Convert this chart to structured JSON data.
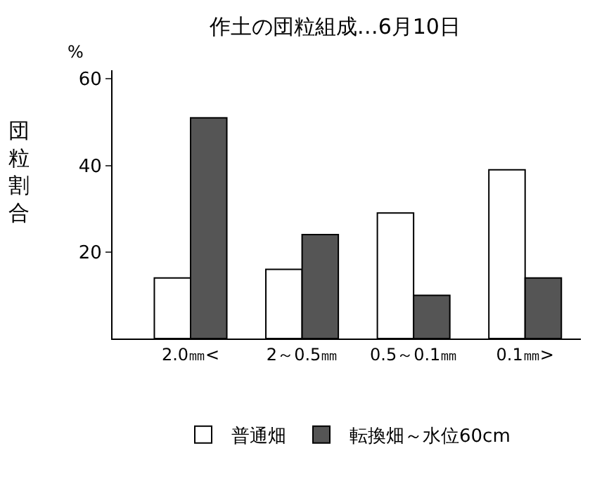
{
  "chart_data": {
    "type": "bar",
    "title": "作土の団粒組成…6月10日",
    "ylabel": "団粒割合",
    "annotations": [
      "%"
    ],
    "categories": [
      "2.0㎜<",
      "2～0.5㎜",
      "0.5～0.1㎜",
      "0.1㎜>"
    ],
    "series": [
      {
        "name": "普通畑",
        "color": "#ffffff",
        "values": [
          14,
          16,
          29,
          39
        ]
      },
      {
        "name": "転換畑～水位60cm",
        "color": "#555555",
        "values": [
          51,
          24,
          10,
          14
        ]
      }
    ],
    "ylim": [
      0,
      62
    ],
    "yticks": [
      20,
      40,
      60
    ],
    "grid": false,
    "legend": "bottom"
  }
}
